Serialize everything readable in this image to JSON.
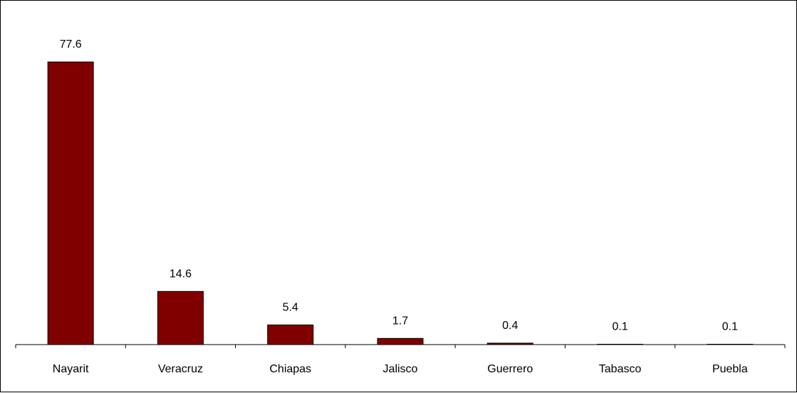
{
  "chart_data": {
    "type": "bar",
    "categories": [
      "Nayarit",
      "Veracruz",
      "Chiapas",
      "Jalisco",
      "Guerrero",
      "Tabasco",
      "Puebla"
    ],
    "values": [
      77.6,
      14.6,
      5.4,
      1.7,
      0.4,
      0.1,
      0.1
    ],
    "data_labels": [
      "77.6",
      "14.6",
      "5.4",
      "1.7",
      "0.4",
      "0.1",
      "0.1"
    ],
    "bar_color": "#800000",
    "ylim": [
      0,
      77.6
    ],
    "grid": false,
    "legend": "none"
  }
}
